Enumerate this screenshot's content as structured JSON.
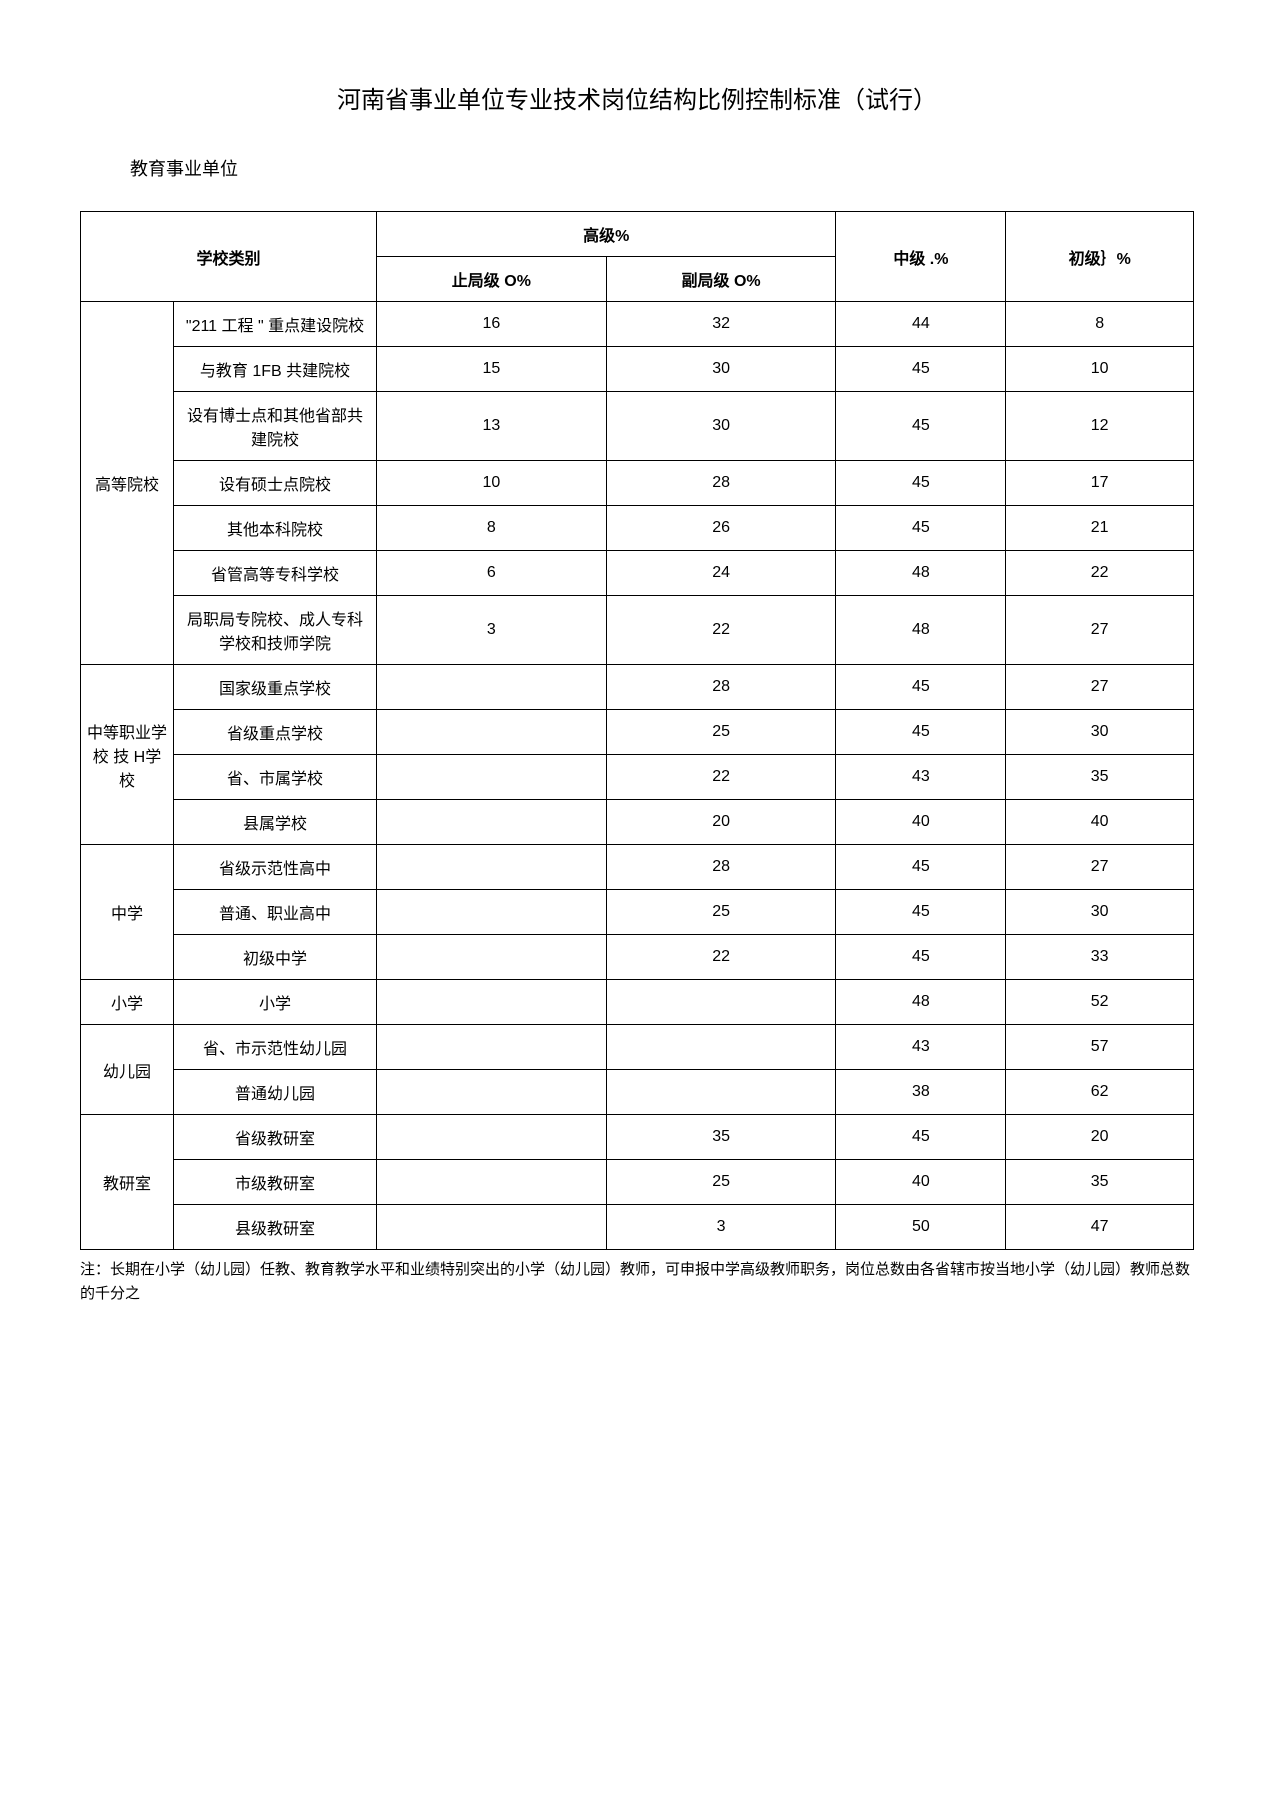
{
  "title": "河南省事业单位专业技术岗位结构比例控制标准（试行）",
  "subtitle": "教育事业单位",
  "headers": {
    "school_type": "学校类别",
    "senior": "高级%",
    "senior_full": "止局级 O%",
    "senior_vice": "副局级 O%",
    "mid": "中级 .%",
    "junior": "初级｝%"
  },
  "groups": [
    {
      "group_label": "高等院校",
      "rows": [
        {
          "label": "\"211 工程 \" 重点建设院校",
          "senior_full": "16",
          "senior_vice": "32",
          "mid": "44",
          "junior": "8"
        },
        {
          "label": "与教育 1FB 共建院校",
          "senior_full": "15",
          "senior_vice": "30",
          "mid": "45",
          "junior": "10"
        },
        {
          "label": "设有博士点和其他省部共建院校",
          "senior_full": "13",
          "senior_vice": "30",
          "mid": "45",
          "junior": "12"
        },
        {
          "label": "设有硕士点院校",
          "senior_full": "10",
          "senior_vice": "28",
          "mid": "45",
          "junior": "17"
        },
        {
          "label": "其他本科院校",
          "senior_full": "8",
          "senior_vice": "26",
          "mid": "45",
          "junior": "21"
        },
        {
          "label": "省管高等专科学校",
          "senior_full": "6",
          "senior_vice": "24",
          "mid": "48",
          "junior": "22"
        },
        {
          "label": "局职局专院校、成人专科学校和技师学院",
          "senior_full": "3",
          "senior_vice": "22",
          "mid": "48",
          "junior": "27"
        }
      ]
    },
    {
      "group_label": "中等职业学 校 技 H学校",
      "rows": [
        {
          "label": "国家级重点学校",
          "senior_full": "",
          "senior_vice": "28",
          "mid": "45",
          "junior": "27"
        },
        {
          "label": "省级重点学校",
          "senior_full": "",
          "senior_vice": "25",
          "mid": "45",
          "junior": "30"
        },
        {
          "label": "省、市属学校",
          "senior_full": "",
          "senior_vice": "22",
          "mid": "43",
          "junior": "35"
        },
        {
          "label": "县属学校",
          "senior_full": "",
          "senior_vice": "20",
          "mid": "40",
          "junior": "40"
        }
      ]
    },
    {
      "group_label": "中学",
      "rows": [
        {
          "label": "省级示范性高中",
          "senior_full": "",
          "senior_vice": "28",
          "mid": "45",
          "junior": "27"
        },
        {
          "label": "普通、职业高中",
          "senior_full": "",
          "senior_vice": "25",
          "mid": "45",
          "junior": "30"
        },
        {
          "label": "初级中学",
          "senior_full": "",
          "senior_vice": "22",
          "mid": "45",
          "junior": "33"
        }
      ]
    },
    {
      "group_label": "小学",
      "rows": [
        {
          "label": "小学",
          "senior_full": "",
          "senior_vice": "",
          "mid": "48",
          "junior": "52"
        }
      ]
    },
    {
      "group_label": "幼儿园",
      "rows": [
        {
          "label": "省、市示范性幼儿园",
          "senior_full": "",
          "senior_vice": "",
          "mid": "43",
          "junior": "57"
        },
        {
          "label": "普通幼儿园",
          "senior_full": "",
          "senior_vice": "",
          "mid": "38",
          "junior": "62"
        }
      ]
    },
    {
      "group_label": "教研室",
      "rows": [
        {
          "label": "省级教研室",
          "senior_full": "",
          "senior_vice": "35",
          "mid": "45",
          "junior": "20"
        },
        {
          "label": "市级教研室",
          "senior_full": "",
          "senior_vice": "25",
          "mid": "40",
          "junior": "35"
        },
        {
          "label": "县级教研室",
          "senior_full": "",
          "senior_vice": "3",
          "mid": "50",
          "junior": "47"
        }
      ]
    }
  ],
  "footnote": "注：长期在小学（幼儿园）任教、教育教学水平和业绩特别突出的小学（幼儿园）教师，可申报中学高级教师职务，岗位总数由各省辖市按当地小学（幼儿园）教师总数的千分之"
}
